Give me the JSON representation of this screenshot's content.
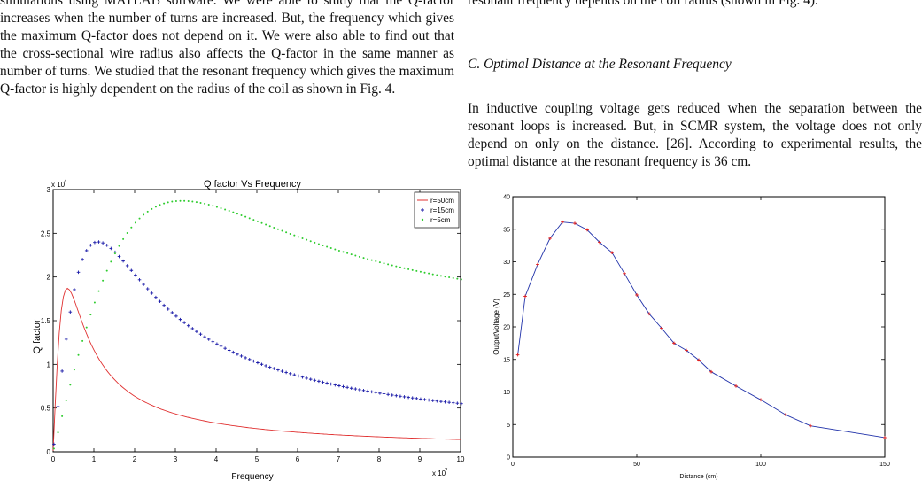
{
  "left_column": {
    "paragraph": "simulations using MATLAB software. We were able to study that the Q-factor increases when the number of turns are increased. But, the frequency which gives the maximum Q-factor does not depend on it. We were also able to find out that the cross-sectional wire radius also affects the Q-factor in the same manner as number of turns. We studied that the resonant frequency which gives the maximum Q-factor is highly dependent on the radius of the coil as shown in Fig. 4."
  },
  "right_column": {
    "top_fragment": "resonant frequency depends on the coil radius (shown in Fig. 4).",
    "section_heading": "C. Optimal Distance at the Resonant Frequency",
    "paragraph": "In inductive coupling voltage gets reduced when the separation between the resonant loops is increased. But, in SCMR system, the voltage does not only depend on only on the distance. [26]. According to experimental results, the optimal distance at the resonant frequency is 36 cm."
  },
  "chart_data": [
    {
      "type": "line",
      "title": "Q factor Vs Frequency",
      "xlabel": "Frequency",
      "ylabel": "Q factor",
      "x_exponent_label": "x 10",
      "x_exponent": "7",
      "y_exponent_label": "x 10",
      "y_exponent": "4",
      "xlim": [
        0,
        10
      ],
      "ylim": [
        0,
        3
      ],
      "xticks": [
        "0",
        "1",
        "2",
        "3",
        "4",
        "5",
        "6",
        "7",
        "8",
        "9",
        "10"
      ],
      "yticks": [
        "0",
        "0.5",
        "1",
        "1.5",
        "2",
        "2.5",
        "3"
      ],
      "legend_position": "top-right",
      "grid": false,
      "series": [
        {
          "name": "r=50cm",
          "color": "#e03030",
          "style": "line",
          "peak_x": 0.35,
          "peak_y": 1.87,
          "x_start": 0.02,
          "y_start": 0.25,
          "decay_tail": 0.01
        },
        {
          "name": "r=15cm",
          "color": "#1a1aa8",
          "style": "plus",
          "peak_x": 1.1,
          "peak_y": 2.4,
          "x_start": 0.02,
          "y_start": 0.25,
          "decay_tail": 0.03
        },
        {
          "name": "r=5cm",
          "color": "#2ecc2e",
          "style": "dot",
          "peak_x": 3.0,
          "peak_y": 2.78,
          "x_start": 0.02,
          "y_start": 0.2,
          "decay_tail": 0.46
        }
      ]
    },
    {
      "type": "line",
      "title": "",
      "xlabel": "Distance (cm)",
      "ylabel": "OutputVoltage (V)",
      "xlim": [
        0,
        150
      ],
      "ylim": [
        0,
        40
      ],
      "xticks": [
        "0",
        "50",
        "100",
        "150"
      ],
      "yticks": [
        "0",
        "5",
        "10",
        "15",
        "20",
        "25",
        "30",
        "35",
        "40"
      ],
      "grid": false,
      "line_color": "#2233aa",
      "marker_color": "#e02020",
      "x": [
        2,
        5,
        10,
        15,
        20,
        25,
        30,
        35,
        40,
        45,
        50,
        55,
        60,
        65,
        70,
        75,
        80,
        90,
        100,
        110,
        120,
        150
      ],
      "y": [
        15.7,
        24.7,
        29.6,
        33.6,
        36.1,
        35.9,
        34.9,
        33.0,
        31.4,
        28.2,
        24.9,
        22.0,
        19.8,
        17.5,
        16.4,
        14.9,
        13.1,
        10.9,
        8.8,
        6.5,
        4.8,
        3.0
      ]
    }
  ]
}
